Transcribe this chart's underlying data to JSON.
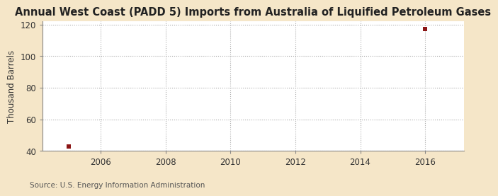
{
  "title": "Annual West Coast (PADD 5) Imports from Australia of Liquified Petroleum Gases",
  "ylabel": "Thousand Barrels",
  "source": "Source: U.S. Energy Information Administration",
  "fig_background_color": "#f5e6c8",
  "plot_background_color": "#ffffff",
  "data_points": [
    {
      "year": 2005,
      "value": 43
    },
    {
      "year": 2016,
      "value": 117
    }
  ],
  "marker_color": "#8b1515",
  "marker_size": 4,
  "xlim": [
    2004.2,
    2017.2
  ],
  "ylim": [
    40,
    122
  ],
  "yticks": [
    40,
    60,
    80,
    100,
    120
  ],
  "xticks": [
    2006,
    2008,
    2010,
    2012,
    2014,
    2016
  ],
  "title_fontsize": 10.5,
  "label_fontsize": 8.5,
  "tick_fontsize": 8.5,
  "source_fontsize": 7.5,
  "grid_color": "#aaaaaa",
  "spine_color": "#888888"
}
